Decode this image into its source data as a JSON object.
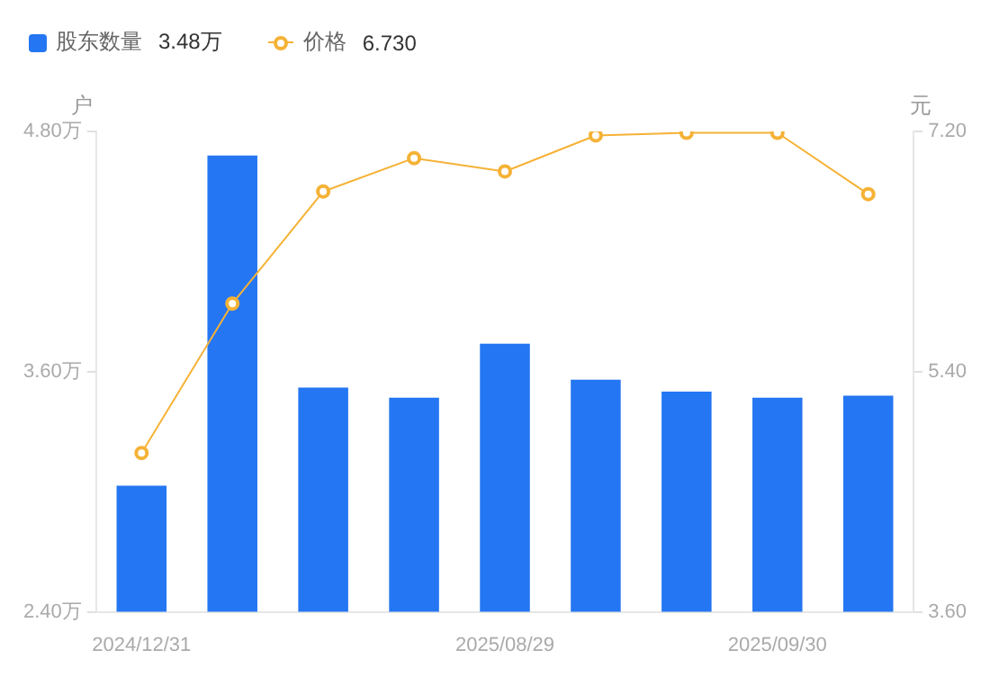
{
  "chart_data": {
    "type": "bar",
    "categories": [
      "2024/12/31",
      null,
      null,
      null,
      "2025/08/29",
      null,
      null,
      "2025/09/30",
      null
    ],
    "series": [
      {
        "name": "股东数量",
        "color": "#2576f2",
        "values": [
          3.03,
          4.68,
          3.52,
          3.47,
          3.74,
          3.56,
          3.5,
          3.47,
          3.48
        ]
      },
      {
        "name": "价格",
        "type": "line",
        "axis": "y2",
        "color": "#f5b236",
        "marker": "circle",
        "values": [
          4.79,
          5.91,
          6.75,
          7.0,
          6.9,
          7.17,
          7.19,
          7.19,
          6.73
        ]
      }
    ],
    "annotations": [
      "3.48万",
      "6.730"
    ],
    "ylabel": "户",
    "y2label": "元",
    "ylim": [
      2.4,
      4.8
    ],
    "yticks": [
      {
        "value": 2.4,
        "label": "2.40万"
      },
      {
        "value": 3.6,
        "label": "3.60万"
      },
      {
        "value": 4.8,
        "label": "4.80万"
      }
    ],
    "y2lim": [
      3.6,
      7.2
    ],
    "y2ticks": [
      {
        "value": 3.6,
        "label": "3.60"
      },
      {
        "value": 5.4,
        "label": "5.40"
      },
      {
        "value": 7.2,
        "label": "7.20"
      }
    ],
    "grid": false,
    "legend": "top left"
  }
}
